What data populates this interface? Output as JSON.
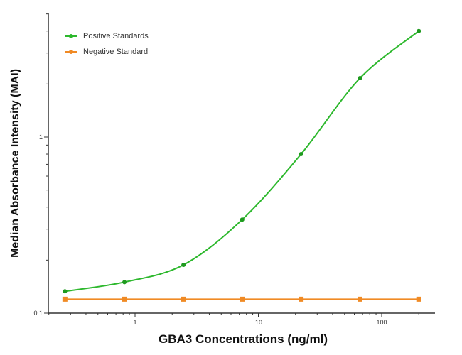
{
  "chart_data": {
    "type": "line",
    "title": "",
    "xlabel": "GBA3 Concentrations (ng/ml)",
    "ylabel": "Median Absorbance Intensity (MAI)",
    "xscale": "log",
    "yscale": "log",
    "xlim": [
      0.2,
      300
    ],
    "ylim": [
      0.1,
      5
    ],
    "x_ticks": [
      "1",
      "10",
      "100"
    ],
    "y_ticks": [
      "0.1",
      "1"
    ],
    "grid": false,
    "legend_position": "upper-left",
    "x": [
      0.27,
      0.82,
      2.47,
      7.4,
      22.2,
      66.7,
      200
    ],
    "series": [
      {
        "name": "Positive Standards",
        "color": "#2db82d",
        "values": [
          0.133,
          0.15,
          0.188,
          0.34,
          0.8,
          2.16,
          4.0
        ],
        "fit": "4PL curve"
      },
      {
        "name": "Negative Standard",
        "color": "#f08a24",
        "values": [
          0.12,
          0.12,
          0.12,
          0.12,
          0.12,
          0.12,
          0.12
        ]
      }
    ]
  },
  "legend": {
    "items": [
      {
        "label": "Positive Standards",
        "color": "#2db82d"
      },
      {
        "label": "Negative Standard",
        "color": "#f08a24"
      }
    ]
  },
  "axes": {
    "xlabel": "GBA3 Concentrations (ng/ml)",
    "ylabel": "Median Absorbance Intensity (MAI)",
    "x_ticks": [
      {
        "label": "1",
        "px": 190
      },
      {
        "label": "10",
        "px": 364
      },
      {
        "label": "100",
        "px": 537
      }
    ],
    "y_ticks": [
      {
        "label": "0.1",
        "py": 441
      },
      {
        "label": "1",
        "py": 193
      }
    ]
  }
}
